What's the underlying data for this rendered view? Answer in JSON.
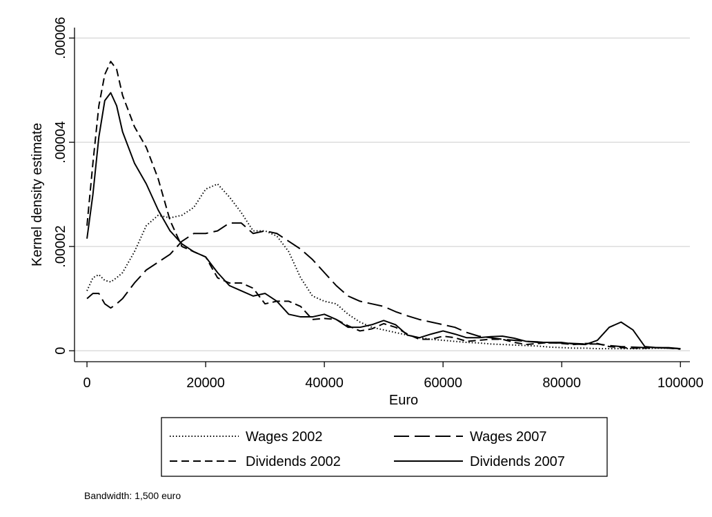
{
  "chart_data": {
    "type": "line",
    "x_label": "Euro",
    "y_label": "Kernel density estimate",
    "note": "Bandwidth: 1,500 euro",
    "xlim": [
      -2100,
      101600
    ],
    "ylim": [
      -2.1e-06,
      6.2e-05
    ],
    "xticks": [
      0,
      20000,
      40000,
      60000,
      80000,
      100000
    ],
    "yticks": [
      {
        "value": 0,
        "label": "0"
      },
      {
        "value": 2e-05,
        "label": ".00002"
      },
      {
        "value": 4e-05,
        "label": ".00004"
      },
      {
        "value": 6e-05,
        "label": ".00006"
      }
    ],
    "grid": true,
    "x": [
      0,
      1000,
      2000,
      3000,
      4000,
      5000,
      6000,
      8000,
      10000,
      12000,
      14000,
      16000,
      18000,
      20000,
      22000,
      24000,
      26000,
      28000,
      30000,
      32000,
      34000,
      36000,
      38000,
      40000,
      42000,
      44000,
      46000,
      48000,
      50000,
      52000,
      54000,
      56000,
      58000,
      60000,
      62000,
      64000,
      66000,
      68000,
      70000,
      72000,
      74000,
      76000,
      78000,
      80000,
      82000,
      84000,
      86000,
      88000,
      90000,
      92000,
      94000,
      96000,
      98000,
      100000
    ],
    "series": [
      {
        "name": "Wages 2002",
        "color": "#000000",
        "style": "dotted",
        "values": [
          1.15e-05,
          1.4e-05,
          1.46e-05,
          1.35e-05,
          1.32e-05,
          1.4e-05,
          1.5e-05,
          1.9e-05,
          2.4e-05,
          2.6e-05,
          2.55e-05,
          2.6e-05,
          2.75e-05,
          3.1e-05,
          3.2e-05,
          2.95e-05,
          2.65e-05,
          2.3e-05,
          2.3e-05,
          2.2e-05,
          1.9e-05,
          1.4e-05,
          1.05e-05,
          9.5e-06,
          9e-06,
          7e-06,
          5.5e-06,
          4.5e-06,
          4e-06,
          3.5e-06,
          3e-06,
          2.5e-06,
          2.2e-06,
          2e-06,
          1.8e-06,
          1.6e-06,
          1.5e-06,
          1.3e-06,
          1.2e-06,
          1.1e-06,
          1e-06,
          9e-07,
          7e-07,
          6e-07,
          5e-07,
          5e-07,
          4e-07,
          4e-07,
          4e-07,
          4e-07,
          4e-07,
          5e-07,
          5e-07,
          4e-07
        ]
      },
      {
        "name": "Wages 2007",
        "color": "#000000",
        "style": "longdash",
        "values": [
          1e-05,
          1.1e-05,
          1.1e-05,
          9e-06,
          8.2e-06,
          9e-06,
          1e-05,
          1.3e-05,
          1.55e-05,
          1.7e-05,
          1.85e-05,
          2.1e-05,
          2.25e-05,
          2.25e-05,
          2.3e-05,
          2.45e-05,
          2.45e-05,
          2.25e-05,
          2.3e-05,
          2.25e-05,
          2.1e-05,
          1.95e-05,
          1.75e-05,
          1.5e-05,
          1.25e-05,
          1.05e-05,
          9.5e-06,
          9e-06,
          8.5e-06,
          7.5e-06,
          6.7e-06,
          6e-06,
          5.5e-06,
          5e-06,
          4.5e-06,
          3.5e-06,
          2.8e-06,
          2.5e-06,
          2.2e-06,
          2e-06,
          1.8e-06,
          1.7e-06,
          1.5e-06,
          1.5e-06,
          1.4e-06,
          1.3e-06,
          1.3e-06,
          1e-06,
          8e-07,
          7e-07,
          6e-07,
          6e-07,
          5e-07,
          4e-07
        ]
      },
      {
        "name": "Dividends 2002",
        "color": "#000000",
        "style": "dash",
        "values": [
          2.4e-05,
          3.6e-05,
          4.7e-05,
          5.3e-05,
          5.55e-05,
          5.4e-05,
          4.9e-05,
          4.3e-05,
          3.9e-05,
          3.3e-05,
          2.5e-05,
          2e-05,
          1.9e-05,
          1.8e-05,
          1.4e-05,
          1.3e-05,
          1.3e-05,
          1.2e-05,
          9e-06,
          9.5e-06,
          9.5e-06,
          8.5e-06,
          6e-06,
          6.2e-06,
          6e-06,
          4.8e-06,
          3.8e-06,
          4.2e-06,
          5.2e-06,
          4.5e-06,
          3.2e-06,
          2.2e-06,
          2.2e-06,
          2.8e-06,
          2.5e-06,
          1.8e-06,
          2e-06,
          2.2e-06,
          2.2e-06,
          1.6e-06,
          1.2e-06,
          1.4e-06,
          1.6e-06,
          1.4e-06,
          1.2e-06,
          1.4e-06,
          1.4e-06,
          8e-07,
          6e-07,
          5e-07,
          5e-07,
          6e-07,
          5e-07,
          3e-07
        ]
      },
      {
        "name": "Dividends 2007",
        "color": "#000000",
        "style": "solid",
        "values": [
          2.15e-05,
          3e-05,
          4.1e-05,
          4.8e-05,
          4.95e-05,
          4.7e-05,
          4.2e-05,
          3.6e-05,
          3.2e-05,
          2.7e-05,
          2.3e-05,
          2.05e-05,
          1.9e-05,
          1.8e-05,
          1.5e-05,
          1.25e-05,
          1.15e-05,
          1.05e-05,
          1.1e-05,
          9.5e-06,
          7e-06,
          6.5e-06,
          6.5e-06,
          7e-06,
          6e-06,
          4.5e-06,
          4.5e-06,
          5e-06,
          5.8e-06,
          5e-06,
          3e-06,
          2.5e-06,
          3.2e-06,
          3.8e-06,
          3.2e-06,
          2.5e-06,
          2.5e-06,
          2.7e-06,
          2.8e-06,
          2.4e-06,
          1.8e-06,
          1.6e-06,
          1.6e-06,
          1.6e-06,
          1.3e-06,
          1.2e-06,
          2e-06,
          4.5e-06,
          5.5e-06,
          4e-06,
          8e-07,
          6e-07,
          6e-07,
          4e-07
        ]
      }
    ]
  }
}
